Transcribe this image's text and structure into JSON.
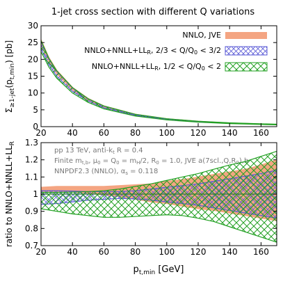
{
  "chart_data": [
    {
      "type": "area",
      "title": "1-jet cross section with different Q variations",
      "xlabel": "p_t,min [GeV]",
      "ylabel": "Σ≥1-jet(p_t,min) [pb]",
      "xlim": [
        20,
        170
      ],
      "ylim": [
        0,
        30
      ],
      "xticks": [
        20,
        40,
        60,
        80,
        100,
        120,
        140,
        160
      ],
      "yticks": [
        0,
        5,
        10,
        15,
        20,
        25,
        30
      ],
      "legend_position": "top-right",
      "x": [
        20,
        25,
        30,
        40,
        50,
        60,
        80,
        100,
        120,
        140,
        170
      ],
      "series": [
        {
          "name": "NNLO, JVE",
          "color": "#f4a582",
          "style": "solid-band",
          "lower": [
            24.3,
            19.3,
            15.7,
            10.9,
            7.8,
            5.8,
            3.45,
            2.2,
            1.48,
            1.02,
            0.62
          ],
          "upper": [
            25.9,
            20.6,
            16.8,
            11.7,
            8.4,
            6.2,
            3.7,
            2.35,
            1.6,
            1.1,
            0.68
          ]
        },
        {
          "name": "NNLO+NNLL+LL_R, 2/3 < Q/Q_0 < 3/2",
          "color": "#5a5ad6",
          "style": "hatched-band",
          "lower": [
            23.2,
            18.4,
            15.0,
            10.5,
            7.6,
            5.6,
            3.35,
            2.15,
            1.45,
            1.0,
            0.61
          ],
          "upper": [
            25.4,
            20.1,
            16.5,
            11.5,
            8.25,
            6.1,
            3.62,
            2.3,
            1.56,
            1.08,
            0.66
          ]
        },
        {
          "name": "NNLO+NNLL+LL_R, 1/2 < Q/Q_0 < 2",
          "color": "#22a022",
          "style": "hatched-band",
          "lower": [
            22.3,
            17.7,
            14.4,
            10.0,
            7.2,
            5.3,
            3.15,
            2.0,
            1.33,
            0.9,
            0.53
          ],
          "upper": [
            25.6,
            20.3,
            16.6,
            11.6,
            8.3,
            6.15,
            3.68,
            2.36,
            1.62,
            1.14,
            0.72
          ]
        }
      ]
    },
    {
      "type": "area",
      "title": "",
      "xlabel": "p_t,min [GeV]",
      "ylabel": "ratio to NNLO+NNLL+LL_R",
      "xlim": [
        20,
        170
      ],
      "ylim": [
        0.7,
        1.3
      ],
      "xticks": [
        20,
        40,
        60,
        80,
        100,
        120,
        140,
        160
      ],
      "yticks": [
        0.7,
        0.8,
        0.9,
        1,
        1.1,
        1.2,
        1.3
      ],
      "reference_line": 1,
      "annotations": [
        "pp 13 TeV, anti-k_t R = 0.4",
        "Finite m_t,b, μ_0 = Q_0 = m_H/2, R_0 = 1.0, JVE a(7scl.,Q,R_0),b",
        "NNPDF2.3 (NNLO), α_s = 0.118"
      ],
      "x": [
        20,
        30,
        40,
        50,
        60,
        70,
        80,
        90,
        100,
        110,
        120,
        130,
        140,
        150,
        160,
        170
      ],
      "series": [
        {
          "name": "NNLO, JVE",
          "color": "#f4a582",
          "style": "solid-band",
          "lower": [
            1.015,
            1.015,
            1.012,
            1.005,
            0.995,
            0.985,
            0.97,
            0.955,
            0.945,
            0.93,
            0.915,
            0.905,
            0.89,
            0.875,
            0.86,
            0.845
          ],
          "upper": [
            1.04,
            1.045,
            1.045,
            1.045,
            1.045,
            1.05,
            1.055,
            1.06,
            1.075,
            1.085,
            1.1,
            1.115,
            1.13,
            1.145,
            1.17,
            1.2
          ]
        },
        {
          "name": "NNLO+NNLL+LL_R, 2/3 < Q/Q_0 < 3/2",
          "color": "#5a5ad6",
          "style": "hatched-band",
          "lower": [
            0.94,
            0.945,
            0.955,
            0.965,
            0.97,
            0.975,
            0.972,
            0.965,
            0.955,
            0.945,
            0.935,
            0.92,
            0.905,
            0.89,
            0.875,
            0.86
          ],
          "upper": [
            1.02,
            1.02,
            1.018,
            1.015,
            1.015,
            1.015,
            1.02,
            1.03,
            1.04,
            1.05,
            1.06,
            1.075,
            1.09,
            1.105,
            1.12,
            1.14
          ]
        },
        {
          "name": "NNLO+NNLL+LL_R, 1/2 < Q/Q_0 < 2",
          "color": "#22a022",
          "style": "hatched-band",
          "lower": [
            0.915,
            0.9,
            0.885,
            0.875,
            0.865,
            0.865,
            0.87,
            0.875,
            0.88,
            0.875,
            0.86,
            0.84,
            0.81,
            0.78,
            0.75,
            0.72
          ],
          "upper": [
            1.01,
            1.01,
            1.012,
            1.015,
            1.02,
            1.03,
            1.045,
            1.06,
            1.08,
            1.1,
            1.12,
            1.145,
            1.17,
            1.19,
            1.22,
            1.25
          ]
        }
      ]
    }
  ]
}
